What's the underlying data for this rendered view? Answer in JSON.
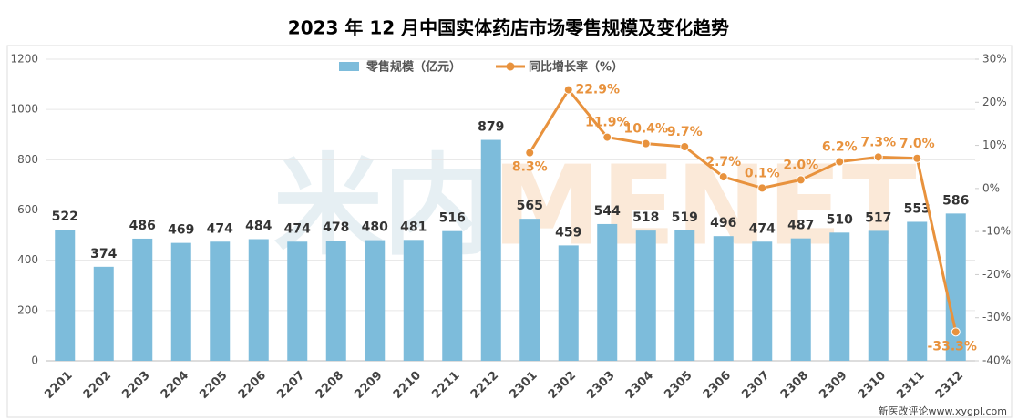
{
  "chart_data": {
    "type": "bar",
    "title": "2023 年 12 月中国实体药店市场零售规模及变化趋势",
    "categories": [
      "2201",
      "2202",
      "2203",
      "2204",
      "2205",
      "2206",
      "2207",
      "2208",
      "2209",
      "2210",
      "2211",
      "2212",
      "2301",
      "2302",
      "2303",
      "2304",
      "2305",
      "2306",
      "2307",
      "2308",
      "2309",
      "2310",
      "2311",
      "2312"
    ],
    "series": [
      {
        "name": "零售规模（亿元）",
        "type": "bar",
        "color": "#7dbcdb",
        "values": [
          522,
          374,
          486,
          469,
          474,
          484,
          474,
          478,
          480,
          481,
          516,
          879,
          565,
          459,
          544,
          518,
          519,
          496,
          474,
          487,
          510,
          517,
          553,
          586
        ]
      },
      {
        "name": "同比增长率（%）",
        "type": "line",
        "axis": "y2",
        "color": "#e8923d",
        "values": [
          null,
          null,
          null,
          null,
          null,
          null,
          null,
          null,
          null,
          null,
          null,
          null,
          8.3,
          22.9,
          11.9,
          10.4,
          9.7,
          2.7,
          0.1,
          2.0,
          6.2,
          7.3,
          7.0,
          -33.3
        ],
        "value_labels": [
          null,
          null,
          null,
          null,
          null,
          null,
          null,
          null,
          null,
          null,
          null,
          null,
          "8.3%",
          "22.9%",
          "11.9%",
          "10.4%",
          "9.7%",
          "2.7%",
          "0.1%",
          "2.0%",
          "6.2%",
          "7.3%",
          "7.0%",
          "-33.3%"
        ]
      }
    ],
    "ylim": [
      0,
      1200
    ],
    "yticks": [
      0,
      200,
      400,
      600,
      800,
      1000,
      1200
    ],
    "y2lim": [
      -40,
      30
    ],
    "y2ticks": [
      {
        "value": -40,
        "label": "-40%"
      },
      {
        "value": -30,
        "label": "-30%"
      },
      {
        "value": -20,
        "label": "-20%"
      },
      {
        "value": -10,
        "label": "-10%"
      },
      {
        "value": 0,
        "label": "0%"
      },
      {
        "value": 10,
        "label": "10%"
      },
      {
        "value": 20,
        "label": "20%"
      },
      {
        "value": 30,
        "label": "30%"
      }
    ],
    "grid": true,
    "legend": "top",
    "watermark": [
      "米内",
      "MENET"
    ],
    "source": "新医改评论www.xygpl.com"
  }
}
